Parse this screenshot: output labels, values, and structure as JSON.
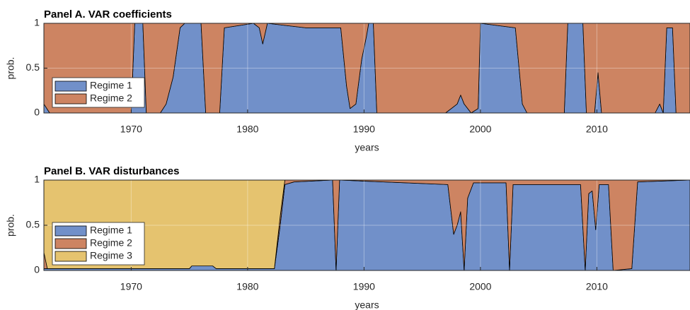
{
  "chart_data": [
    {
      "type": "area",
      "title": "Panel A. VAR coefficients",
      "xlabel": "years",
      "ylabel": "prob.",
      "x": [
        1962.5,
        1963,
        1970,
        1970.3,
        1971,
        1971.3,
        1972.5,
        1973,
        1973.6,
        1974.2,
        1974.6,
        1976,
        1976.4,
        1977.6,
        1978,
        1980.5,
        1981,
        1981.3,
        1981.7,
        1985,
        1988,
        1988.5,
        1988.8,
        1989.3,
        1989.8,
        1990.2,
        1990.4,
        1990.8,
        1991.1,
        1997,
        1997.5,
        1998,
        1998.3,
        1998.6,
        1999.2,
        1999.8,
        2000,
        2003,
        2003.6,
        2004,
        2007.2,
        2007.5,
        2008.8,
        2009.1,
        2009.8,
        2010.1,
        2010.4,
        2015,
        2015.4,
        2015.7,
        2016,
        2016.5,
        2016.8,
        2018
      ],
      "series": [
        {
          "name": "Regime 1",
          "color": "#7190c9",
          "values": [
            0.1,
            0,
            0,
            1,
            1,
            0,
            0,
            0.1,
            0.4,
            0.95,
            1,
            1,
            0,
            0,
            0.95,
            1,
            0.95,
            0.77,
            1,
            0.95,
            0.95,
            0.3,
            0.05,
            0.1,
            0.6,
            0.85,
            1,
            1,
            0,
            0,
            0.05,
            0.1,
            0.2,
            0.1,
            0,
            0.05,
            1,
            0.95,
            0.1,
            0,
            0,
            1,
            1,
            0,
            0,
            0.45,
            0,
            0,
            0.1,
            0,
            0.95,
            0.95,
            0,
            0
          ]
        },
        {
          "name": "Regime 2",
          "color": "#cd8462",
          "values": [
            0.9,
            1,
            1,
            0,
            0,
            1,
            1,
            0.9,
            0.6,
            0.05,
            0,
            0,
            1,
            1,
            0.05,
            0,
            0.05,
            0.23,
            0,
            0.05,
            0.05,
            0.7,
            0.95,
            0.9,
            0.4,
            0.15,
            0,
            0,
            1,
            1,
            0.95,
            0.9,
            0.8,
            0.9,
            1,
            0.95,
            0,
            0.05,
            0.9,
            1,
            1,
            0,
            0,
            1,
            1,
            0.55,
            1,
            1,
            0.9,
            1,
            0.05,
            0.05,
            1,
            1
          ]
        }
      ],
      "xlim": [
        1962.5,
        2018
      ],
      "ylim": [
        0,
        1
      ],
      "xticks": [
        1970,
        1980,
        1990,
        2000,
        2010
      ],
      "yticks": [
        0,
        0.5,
        1
      ],
      "grid": true,
      "legend": "lower left"
    },
    {
      "type": "area",
      "title": "Panel B. VAR disturbances",
      "xlabel": "years",
      "ylabel": "prob.",
      "x": [
        1962.5,
        1962.8,
        1975,
        1975.2,
        1977,
        1977.3,
        1982.3,
        1982.8,
        1983.2,
        1984,
        1987.3,
        1987.6,
        1987.9,
        1997.2,
        1997.7,
        1998,
        1998.3,
        1998.6,
        1998.9,
        1999.4,
        2002.2,
        2002.5,
        2002.8,
        2008.6,
        2009,
        2009.3,
        2009.6,
        2009.9,
        2010.2,
        2011,
        2011.4,
        2013,
        2013.5,
        2018
      ],
      "series": [
        {
          "name": "Regime 1",
          "color": "#7190c9",
          "values": [
            0.02,
            0.02,
            0.02,
            0.05,
            0.05,
            0.02,
            0.02,
            0.5,
            0.95,
            0.98,
            1,
            0,
            1,
            0.95,
            0.4,
            0.5,
            0.65,
            0,
            0.8,
            0.97,
            0.97,
            0,
            0.95,
            0.95,
            0,
            0.85,
            0.88,
            0.45,
            0.95,
            0.95,
            0,
            0.02,
            0.98,
            1
          ]
        },
        {
          "name": "Regime 2",
          "color": "#cd8462",
          "values": [
            0.18,
            0,
            0,
            0,
            0,
            0,
            0,
            0.1,
            0.05,
            0.02,
            0,
            1,
            0,
            0.05,
            0.6,
            0.5,
            0.35,
            1,
            0.2,
            0.03,
            0.03,
            1,
            0.05,
            0.05,
            1,
            0.15,
            0.12,
            0.55,
            0.05,
            0.05,
            1,
            0.98,
            0.02,
            0
          ]
        },
        {
          "name": "Regime 3",
          "color": "#e5c36f",
          "values": [
            0.8,
            0.98,
            0.98,
            0.95,
            0.95,
            0.98,
            0.98,
            0.4,
            0,
            0,
            0,
            0,
            0,
            0,
            0,
            0,
            0,
            0,
            0,
            0,
            0,
            0,
            0,
            0,
            0,
            0,
            0,
            0,
            0,
            0,
            0,
            0,
            0,
            0
          ]
        }
      ],
      "xlim": [
        1962.5,
        2018
      ],
      "ylim": [
        0,
        1
      ],
      "xticks": [
        1970,
        1980,
        1990,
        2000,
        2010
      ],
      "yticks": [
        0,
        0.5,
        1
      ],
      "grid": true,
      "legend": "lower left"
    }
  ]
}
